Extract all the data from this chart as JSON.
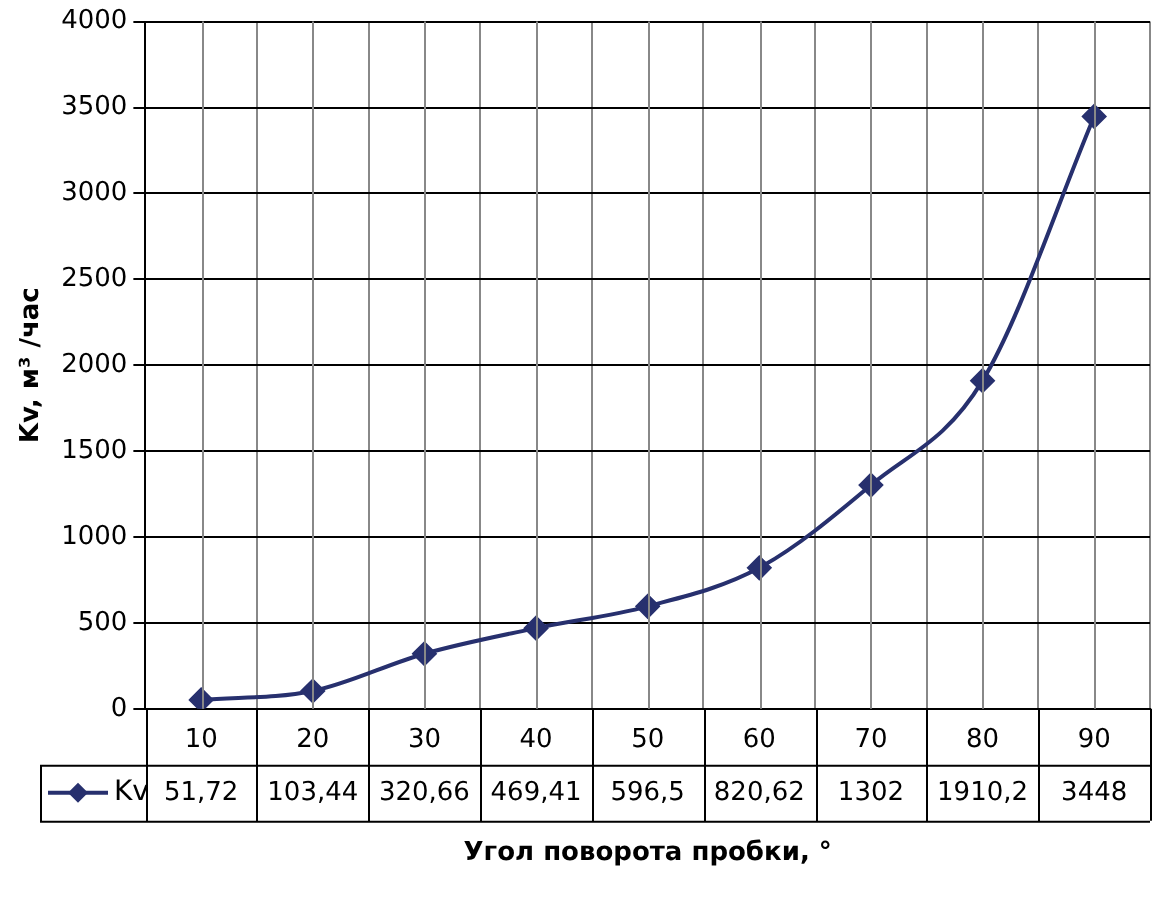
{
  "chart_data": {
    "type": "line",
    "xlabel": "Угол поворота пробки, °",
    "ylabel": "Kv, м³ /час",
    "categories": [
      "10",
      "20",
      "30",
      "40",
      "50",
      "60",
      "70",
      "80",
      "90"
    ],
    "series": [
      {
        "name": "Kv",
        "color": "#27306e",
        "values": [
          51.72,
          103.44,
          320.66,
          469.41,
          596.5,
          820.62,
          1302,
          1910.2,
          3448
        ]
      }
    ],
    "value_labels": [
      "51,72",
      "103,44",
      "320,66",
      "469,41",
      "596,5",
      "820,62",
      "1302",
      "1910,2",
      "3448"
    ],
    "ylim": [
      0,
      4000
    ],
    "yticks": [
      0,
      500,
      1000,
      1500,
      2000,
      2500,
      3000,
      3500,
      4000
    ],
    "grid": true,
    "legend": "bottom",
    "marker": "diamond",
    "line_style": "solid"
  }
}
